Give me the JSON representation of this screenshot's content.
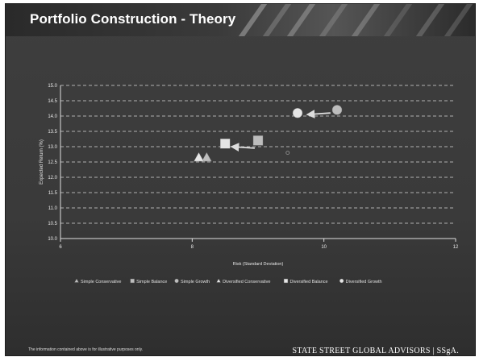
{
  "slide": {
    "title": "Portfolio Construction - Theory",
    "footer_note": "The information contained above is for illustrative purposes only.",
    "brand": "STATE STREET GLOBAL ADVISORS | SSgA."
  },
  "chart_data": {
    "type": "scatter",
    "xlabel": "Risk (Standard Deviation)",
    "ylabel": "Expected Return (%)",
    "xlim": [
      6,
      12
    ],
    "ylim": [
      10.0,
      15.0
    ],
    "xticks": [
      "6",
      "8",
      "10",
      "12"
    ],
    "yticks": [
      "10.0",
      "10.5",
      "11.0",
      "11.5",
      "12.0",
      "12.5",
      "13.0",
      "13.5",
      "14.0",
      "14.5",
      "15.0"
    ],
    "grid": true,
    "legend_position": "bottom",
    "series": [
      {
        "name": "Simple Conservative",
        "marker": "triangle",
        "color": "#bdbdbd",
        "x": 8.22,
        "y": 12.65
      },
      {
        "name": "Simple Balance",
        "marker": "square",
        "color": "#bdbdbd",
        "x": 9.0,
        "y": 13.2
      },
      {
        "name": "Simple Growth",
        "marker": "circle",
        "color": "#bdbdbd",
        "x": 10.2,
        "y": 14.2
      },
      {
        "name": "Diversified Conservative",
        "marker": "triangle",
        "color": "#e6e6e6",
        "x": 8.1,
        "y": 12.65
      },
      {
        "name": "Diversified Balance",
        "marker": "square",
        "color": "#e6e6e6",
        "x": 8.5,
        "y": 13.1
      },
      {
        "name": "Diversified Growth",
        "marker": "circle",
        "color": "#e6e6e6",
        "x": 9.6,
        "y": 14.1
      }
    ],
    "arrows": [
      {
        "from": [
          8.95,
          12.95
        ],
        "to": [
          8.6,
          13.0
        ]
      },
      {
        "from": [
          10.1,
          14.1
        ],
        "to": [
          9.75,
          14.05
        ]
      }
    ],
    "extra_points": [
      {
        "x": 9.45,
        "y": 12.8
      }
    ]
  }
}
